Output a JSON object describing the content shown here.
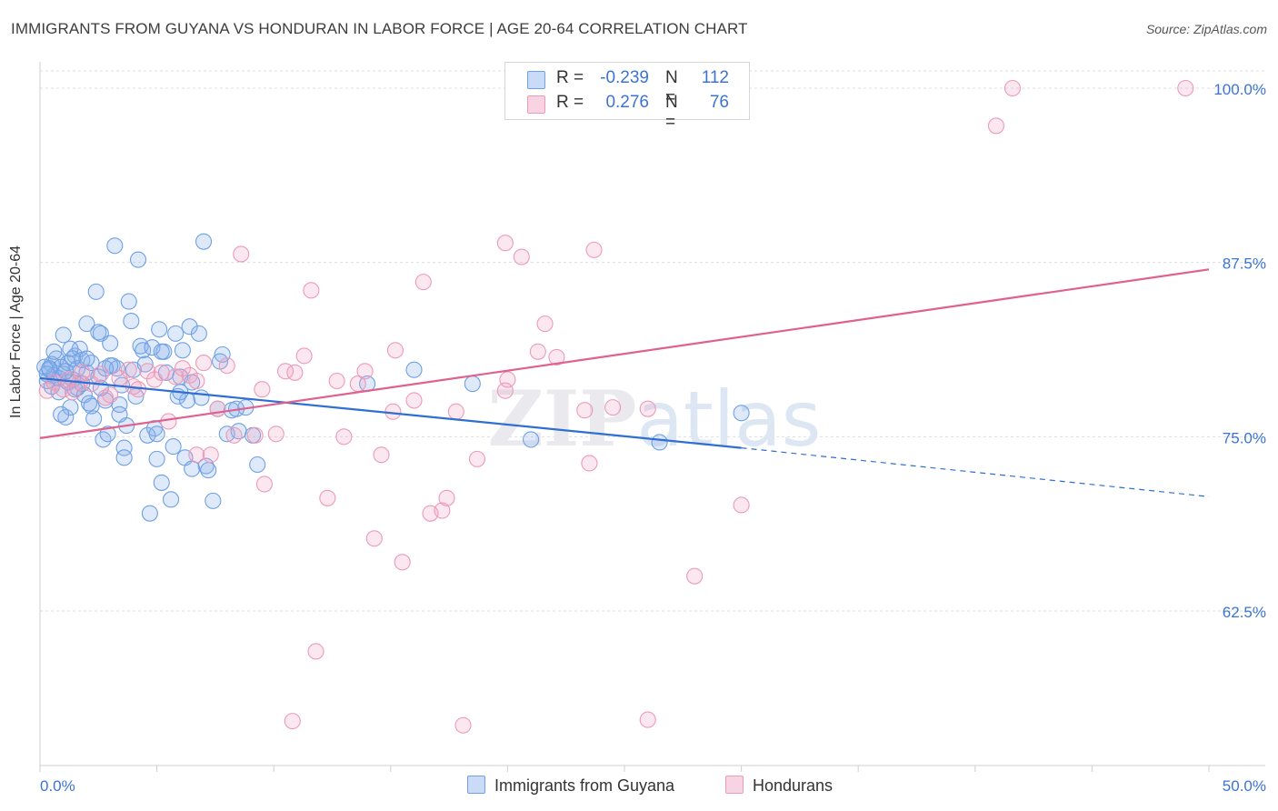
{
  "chart_data": {
    "type": "scatter",
    "title": "IMMIGRANTS FROM GUYANA VS HONDURAN IN LABOR FORCE | AGE 20-64 CORRELATION CHART",
    "source": "Source: ZipAtlas.com",
    "xlabel": "",
    "ylabel": "In Labor Force | Age 20-64",
    "xlim": [
      0,
      50
    ],
    "ylim": [
      52.5,
      102
    ],
    "x_tick_labels": [
      "0.0%",
      "50.0%"
    ],
    "y_ticks": [
      62.5,
      75.0,
      87.5,
      100.0
    ],
    "y_tick_labels": [
      "62.5%",
      "75.0%",
      "87.5%",
      "100.0%"
    ],
    "grid": true,
    "watermark": "ZIPatlas",
    "legend": {
      "rows": [
        {
          "r_label": "R =",
          "r_value": "-0.239",
          "n_label": "N =",
          "n_value": "112"
        },
        {
          "r_label": "R =",
          "r_value": "0.276",
          "n_label": "N =",
          "n_value": "76"
        }
      ]
    },
    "series": [
      {
        "name": "Immigrants from Guyana",
        "color": "#6fa0e6",
        "fill": "rgba(135,175,235,0.28)",
        "line_color": "#2f6fd1",
        "trend": {
          "x0": 0,
          "y0": 79.2,
          "x1": 30,
          "y1": 74.2,
          "dash_x1": 50,
          "dash_y1": 70.7
        },
        "points": [
          [
            0.3,
            79.0
          ],
          [
            0.4,
            79.8
          ],
          [
            0.5,
            80.2
          ],
          [
            0.5,
            78.6
          ],
          [
            0.6,
            79.4
          ],
          [
            0.7,
            80.6
          ],
          [
            0.8,
            79.2
          ],
          [
            0.8,
            78.2
          ],
          [
            0.9,
            80.0
          ],
          [
            1.0,
            79.5
          ],
          [
            1.0,
            82.3
          ],
          [
            1.1,
            76.4
          ],
          [
            1.2,
            78.9
          ],
          [
            1.2,
            80.3
          ],
          [
            1.3,
            77.1
          ],
          [
            1.4,
            79.1
          ],
          [
            1.5,
            80.8
          ],
          [
            1.5,
            78.4
          ],
          [
            1.6,
            79.9
          ],
          [
            1.7,
            81.3
          ],
          [
            1.8,
            80.5
          ],
          [
            1.8,
            78.8
          ],
          [
            1.9,
            78.0
          ],
          [
            2.0,
            83.1
          ],
          [
            2.0,
            79.6
          ],
          [
            2.1,
            77.4
          ],
          [
            2.2,
            80.3
          ],
          [
            2.3,
            76.3
          ],
          [
            2.4,
            85.4
          ],
          [
            2.5,
            82.5
          ],
          [
            2.6,
            82.4
          ],
          [
            2.7,
            74.8
          ],
          [
            2.8,
            77.6
          ],
          [
            2.9,
            75.2
          ],
          [
            3.0,
            81.7
          ],
          [
            3.1,
            80.1
          ],
          [
            3.2,
            88.7
          ],
          [
            3.3,
            79.9
          ],
          [
            3.4,
            77.3
          ],
          [
            3.5,
            78.7
          ],
          [
            3.6,
            74.2
          ],
          [
            3.7,
            75.8
          ],
          [
            3.8,
            84.7
          ],
          [
            3.9,
            83.3
          ],
          [
            4.0,
            79.8
          ],
          [
            4.1,
            77.9
          ],
          [
            4.2,
            87.7
          ],
          [
            4.3,
            81.5
          ],
          [
            4.4,
            81.2
          ],
          [
            4.5,
            80.2
          ],
          [
            4.6,
            75.1
          ],
          [
            4.8,
            81.4
          ],
          [
            4.9,
            75.6
          ],
          [
            5.0,
            73.4
          ],
          [
            5.1,
            82.7
          ],
          [
            5.2,
            71.7
          ],
          [
            5.3,
            81.1
          ],
          [
            5.4,
            79.6
          ],
          [
            5.6,
            70.5
          ],
          [
            5.7,
            74.3
          ],
          [
            5.8,
            82.4
          ],
          [
            5.9,
            77.9
          ],
          [
            6.0,
            79.3
          ],
          [
            6.1,
            81.2
          ],
          [
            6.2,
            73.5
          ],
          [
            6.3,
            77.6
          ],
          [
            6.4,
            82.9
          ],
          [
            6.5,
            78.9
          ],
          [
            6.8,
            82.4
          ],
          [
            7.0,
            89.0
          ],
          [
            7.1,
            72.9
          ],
          [
            7.2,
            72.6
          ],
          [
            7.4,
            70.4
          ],
          [
            7.6,
            77.0
          ],
          [
            7.8,
            80.9
          ],
          [
            8.0,
            75.2
          ],
          [
            8.2,
            76.9
          ],
          [
            8.5,
            75.4
          ],
          [
            8.8,
            77.1
          ],
          [
            9.1,
            75.1
          ],
          [
            9.3,
            73.0
          ],
          [
            2.6,
            78.5
          ],
          [
            3.6,
            73.5
          ],
          [
            5.2,
            81.1
          ],
          [
            6.9,
            77.8
          ],
          [
            8.4,
            77.0
          ],
          [
            7.7,
            80.4
          ],
          [
            14.0,
            78.8
          ],
          [
            16.0,
            79.8
          ],
          [
            18.5,
            78.8
          ],
          [
            21.0,
            74.8
          ],
          [
            26.5,
            74.6
          ],
          [
            30.0,
            76.7
          ],
          [
            0.9,
            76.6
          ],
          [
            1.4,
            80.6
          ],
          [
            2.2,
            77.2
          ],
          [
            3.0,
            80.1
          ],
          [
            4.7,
            69.5
          ],
          [
            1.6,
            78.5
          ],
          [
            2.5,
            79.3
          ],
          [
            0.6,
            81.1
          ],
          [
            1.1,
            79.7
          ],
          [
            2.0,
            80.6
          ],
          [
            6.5,
            72.7
          ],
          [
            1.3,
            81.3
          ],
          [
            0.2,
            80.0
          ],
          [
            0.3,
            79.5
          ],
          [
            0.4,
            79.9
          ],
          [
            2.8,
            79.9
          ],
          [
            3.4,
            76.6
          ],
          [
            5.0,
            75.2
          ],
          [
            6.0,
            78.2
          ]
        ]
      },
      {
        "name": "Hondurans",
        "color": "#ec9bb7",
        "fill": "rgba(240,160,190,0.25)",
        "line_color": "#e0608e",
        "trend": {
          "x0": 0,
          "y0": 74.9,
          "x1": 50,
          "y1": 87.0
        },
        "points": [
          [
            0.3,
            78.3
          ],
          [
            0.6,
            78.9
          ],
          [
            1.0,
            78.4
          ],
          [
            1.2,
            79.1
          ],
          [
            1.4,
            78.2
          ],
          [
            1.8,
            79.6
          ],
          [
            2.2,
            78.8
          ],
          [
            2.6,
            79.5
          ],
          [
            3.0,
            78.0
          ],
          [
            3.4,
            79.2
          ],
          [
            3.8,
            79.8
          ],
          [
            4.2,
            78.4
          ],
          [
            4.6,
            79.7
          ],
          [
            4.9,
            79.1
          ],
          [
            5.2,
            79.6
          ],
          [
            5.5,
            76.1
          ],
          [
            5.8,
            79.3
          ],
          [
            6.1,
            79.9
          ],
          [
            6.4,
            79.4
          ],
          [
            6.7,
            73.7
          ],
          [
            7.0,
            80.3
          ],
          [
            7.3,
            73.7
          ],
          [
            7.6,
            77.0
          ],
          [
            8.0,
            80.1
          ],
          [
            8.3,
            75.1
          ],
          [
            8.6,
            88.1
          ],
          [
            9.2,
            75.1
          ],
          [
            9.5,
            78.4
          ],
          [
            9.6,
            71.6
          ],
          [
            10.1,
            75.2
          ],
          [
            10.5,
            79.7
          ],
          [
            10.8,
            54.6
          ],
          [
            11.3,
            80.8
          ],
          [
            11.6,
            85.5
          ],
          [
            11.8,
            59.6
          ],
          [
            12.3,
            70.6
          ],
          [
            12.7,
            79.0
          ],
          [
            13.0,
            75.0
          ],
          [
            13.6,
            78.8
          ],
          [
            13.9,
            79.7
          ],
          [
            14.3,
            67.7
          ],
          [
            14.6,
            73.7
          ],
          [
            15.2,
            81.2
          ],
          [
            15.5,
            66.0
          ],
          [
            16.0,
            77.6
          ],
          [
            16.4,
            86.1
          ],
          [
            16.7,
            69.5
          ],
          [
            17.2,
            69.7
          ],
          [
            17.4,
            70.6
          ],
          [
            17.8,
            76.8
          ],
          [
            18.1,
            54.3
          ],
          [
            18.7,
            73.4
          ],
          [
            19.9,
            78.3
          ],
          [
            19.9,
            88.9
          ],
          [
            20.6,
            87.9
          ],
          [
            21.3,
            81.1
          ],
          [
            21.6,
            83.1
          ],
          [
            22.1,
            80.7
          ],
          [
            23.3,
            76.9
          ],
          [
            23.5,
            73.1
          ],
          [
            23.7,
            88.4
          ],
          [
            24.5,
            77.1
          ],
          [
            26.0,
            54.7
          ],
          [
            26.0,
            77.0
          ],
          [
            28.0,
            65.0
          ],
          [
            30.0,
            70.1
          ],
          [
            40.9,
            97.3
          ],
          [
            41.6,
            100.0
          ],
          [
            49.0,
            100.0
          ],
          [
            1.7,
            78.9
          ],
          [
            2.8,
            77.8
          ],
          [
            4.0,
            78.6
          ],
          [
            6.7,
            79.0
          ],
          [
            10.9,
            79.6
          ],
          [
            15.1,
            76.8
          ],
          [
            20.0,
            79.1
          ]
        ]
      }
    ]
  }
}
